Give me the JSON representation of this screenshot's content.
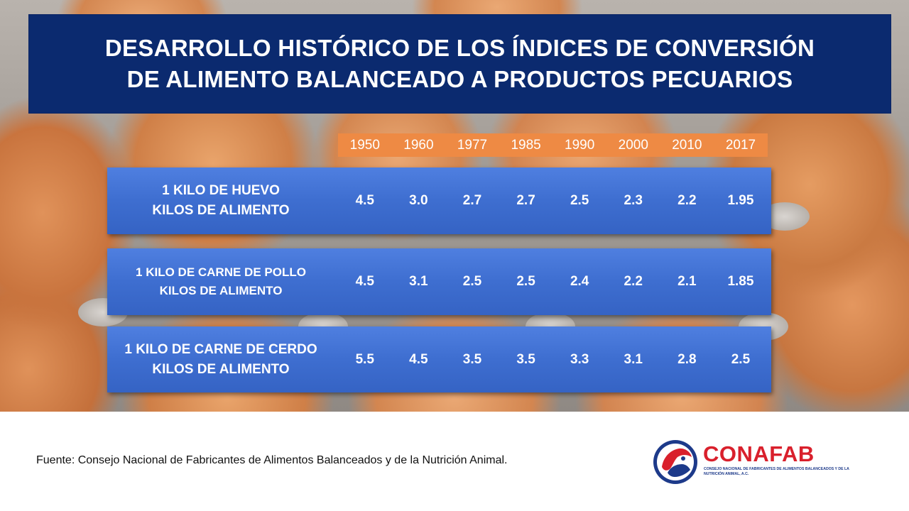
{
  "title": {
    "line1": "DESARROLLO HISTÓRICO DE LOS ÍNDICES DE CONVERSIÓN",
    "line2": "DE ALIMENTO BALANCEADO A PRODUCTOS PECUARIOS"
  },
  "years": [
    "1950",
    "1960",
    "1977",
    "1985",
    "1990",
    "2000",
    "2010",
    "2017"
  ],
  "rows": [
    {
      "label_line1": "1 KILO DE HUEVO",
      "label_line2": "KILOS DE ALIMENTO",
      "values": [
        "4.5",
        "3.0",
        "2.7",
        "2.7",
        "2.5",
        "2.3",
        "2.2",
        "1.95"
      ]
    },
    {
      "label_line1": "1 KILO DE CARNE DE POLLO",
      "label_line2": "KILOS DE ALIMENTO",
      "values": [
        "4.5",
        "3.1",
        "2.5",
        "2.5",
        "2.4",
        "2.2",
        "2.1",
        "1.85"
      ]
    },
    {
      "label_line1": "1 KILO DE CARNE DE CERDO",
      "label_line2": "KILOS DE ALIMENTO",
      "values": [
        "5.5",
        "4.5",
        "3.5",
        "3.5",
        "3.3",
        "3.1",
        "2.8",
        "2.5"
      ]
    }
  ],
  "source": "Fuente: Consejo Nacional de Fabricantes de Alimentos Balanceados y  de la Nutrición Animal.",
  "logo": {
    "name": "CONAFAB",
    "subtitle": "CONSEJO NACIONAL DE FABRICANTES DE ALIMENTOS BALANCEADOS Y DE LA NUTRICIÓN ANIMAL, A.C."
  },
  "colors": {
    "title_bg": "#0b2a6f",
    "year_strip": "#ee8a44",
    "row_blue": "#3e6ed0",
    "logo_red": "#d9202c",
    "logo_blue": "#1d3a8a"
  }
}
